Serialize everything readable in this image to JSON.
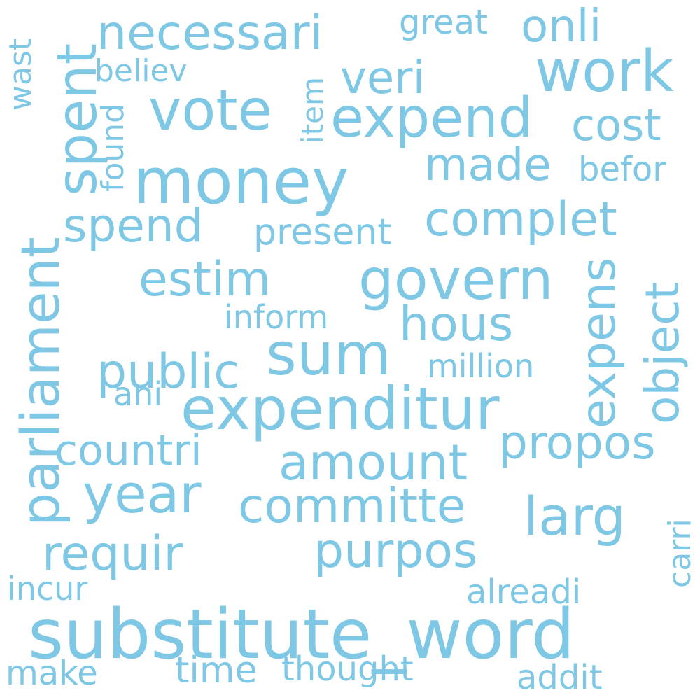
{
  "colors": {
    "word": "#7ec8e5",
    "background": "#ffffff"
  },
  "words": [
    "substitute_word",
    "money",
    "expenditur",
    "govern",
    "sum",
    "vote",
    "work",
    "expend",
    "necessari",
    "spent",
    "parliament",
    "expens",
    "estim",
    "complet",
    "hous",
    "public",
    "amount",
    "year",
    "committe",
    "larg",
    "purpos",
    "requir",
    "propos",
    "object",
    "spend",
    "countri",
    "made",
    "cost",
    "veri",
    "onli",
    "item",
    "believ",
    "found",
    "great",
    "befor",
    "present",
    "inform",
    "million",
    "ani",
    "incur",
    "alreadi",
    "carri",
    "wast",
    "make",
    "time",
    "thought",
    "addit"
  ]
}
